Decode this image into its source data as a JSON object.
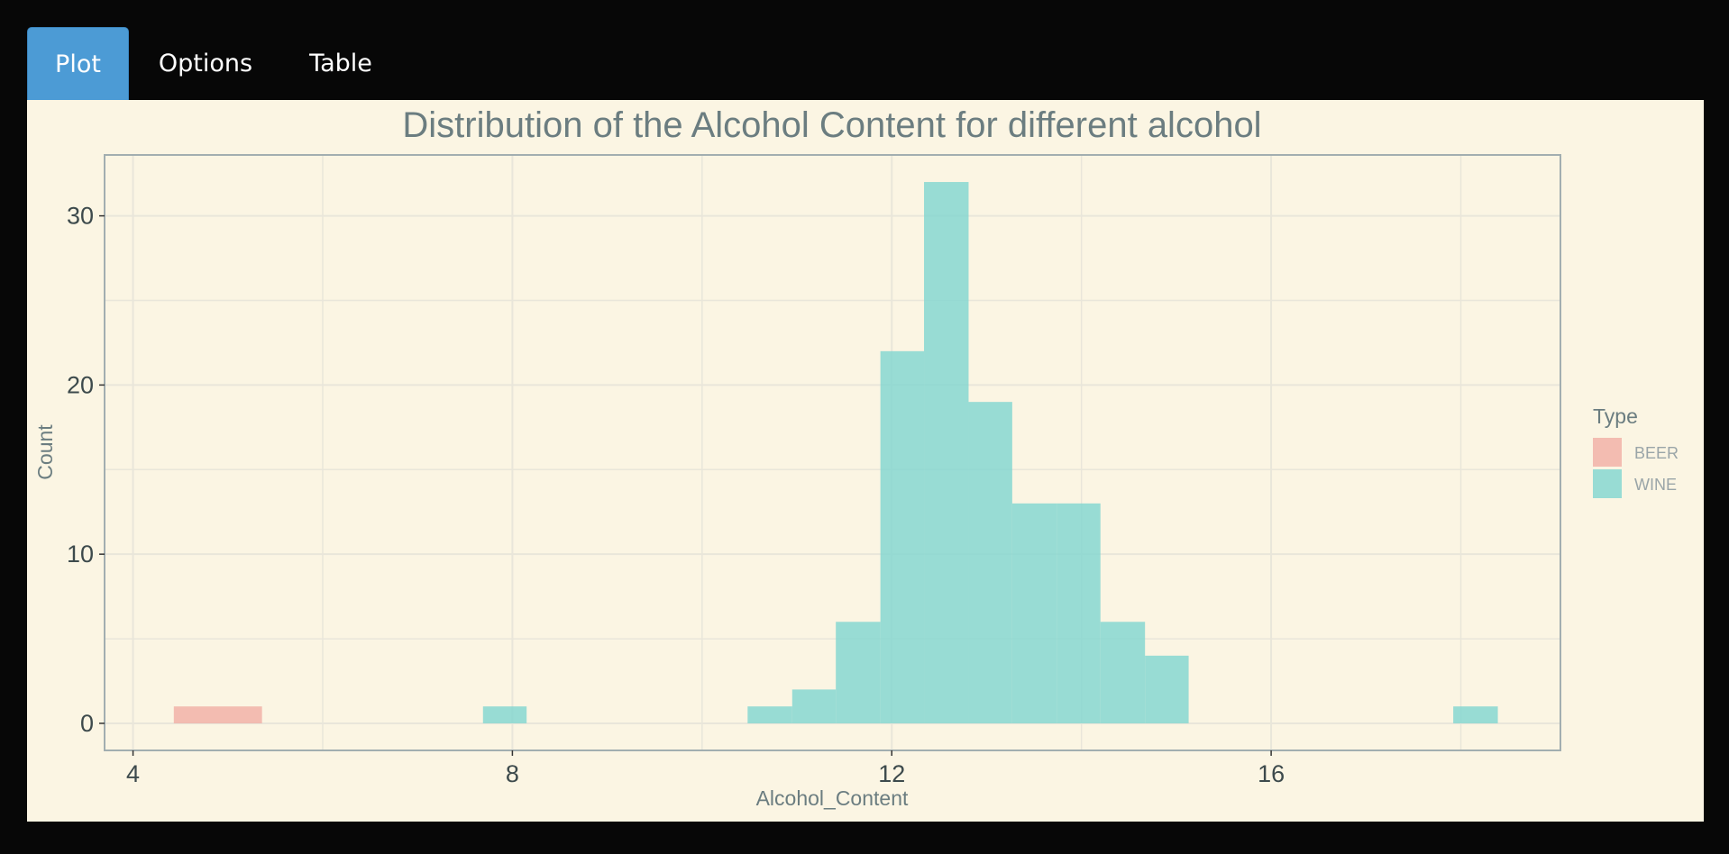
{
  "tabs": [
    {
      "label": "Plot",
      "active": true
    },
    {
      "label": "Options",
      "active": false
    },
    {
      "label": "Table",
      "active": false
    }
  ],
  "colors": {
    "background": "#070707",
    "panel": "#fbf5e3",
    "tab_active": "#4c9bd5",
    "beer": "#f0a8a0",
    "wine": "#7fd6d0"
  },
  "chart_data": {
    "type": "bar",
    "title": "Distribution of the Alcohol Content for different alcohol",
    "xlabel": "Alcohol_Content",
    "ylabel": "Count",
    "xlim": [
      3.7,
      19.05
    ],
    "ylim": [
      -1.6,
      33.6
    ],
    "xticks": [
      4,
      8,
      12,
      16
    ],
    "yticks": [
      0,
      10,
      20,
      30
    ],
    "grid": true,
    "legend": {
      "title": "Type",
      "position": "right",
      "entries": [
        "BEER",
        "WINE"
      ]
    },
    "bin_width": 0.465,
    "series": [
      {
        "name": "BEER",
        "bins": [
          {
            "x0": 4.43,
            "x1": 5.36,
            "count": 1
          }
        ]
      },
      {
        "name": "WINE",
        "bins": [
          {
            "x0": 7.69,
            "x1": 8.15,
            "count": 1
          },
          {
            "x0": 10.48,
            "x1": 10.95,
            "count": 1
          },
          {
            "x0": 10.95,
            "x1": 11.41,
            "count": 2
          },
          {
            "x0": 11.41,
            "x1": 11.88,
            "count": 6
          },
          {
            "x0": 11.88,
            "x1": 12.34,
            "count": 22
          },
          {
            "x0": 12.34,
            "x1": 12.81,
            "count": 32
          },
          {
            "x0": 12.81,
            "x1": 13.27,
            "count": 19
          },
          {
            "x0": 13.27,
            "x1": 13.74,
            "count": 13
          },
          {
            "x0": 13.74,
            "x1": 14.2,
            "count": 13
          },
          {
            "x0": 14.2,
            "x1": 14.67,
            "count": 6
          },
          {
            "x0": 14.67,
            "x1": 15.13,
            "count": 4
          },
          {
            "x0": 17.92,
            "x1": 18.39,
            "count": 1
          }
        ]
      }
    ]
  }
}
